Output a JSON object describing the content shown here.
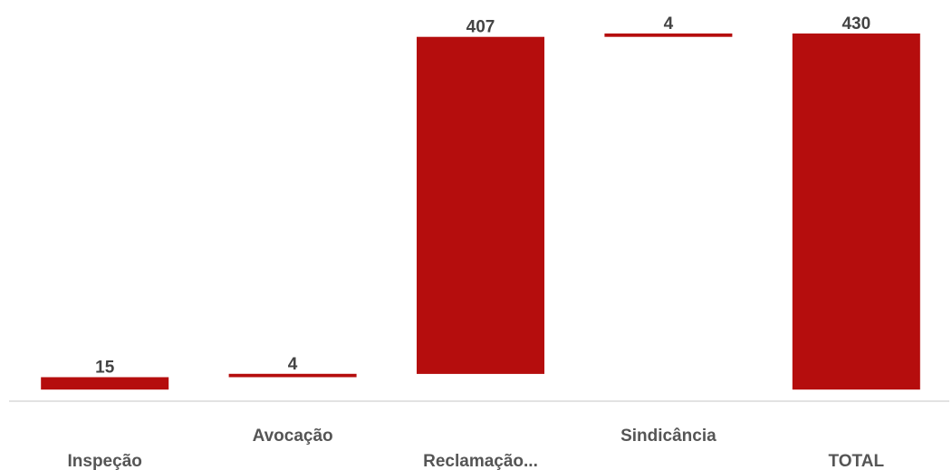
{
  "chart_data": {
    "type": "bar",
    "subtype": "waterfall",
    "categories": [
      "Inspeção",
      "Avocação",
      "Reclamação...",
      "Sindicância",
      "TOTAL"
    ],
    "values": [
      15,
      4,
      407,
      4,
      430
    ],
    "data_labels": [
      "15",
      "4",
      "407",
      "4",
      "430"
    ],
    "ylim": [
      -14,
      430
    ],
    "grid": false,
    "legend": "none",
    "colors": {
      "bar": "#b50d0d",
      "baseline": "#d9d9d9",
      "label": "#444444"
    }
  }
}
